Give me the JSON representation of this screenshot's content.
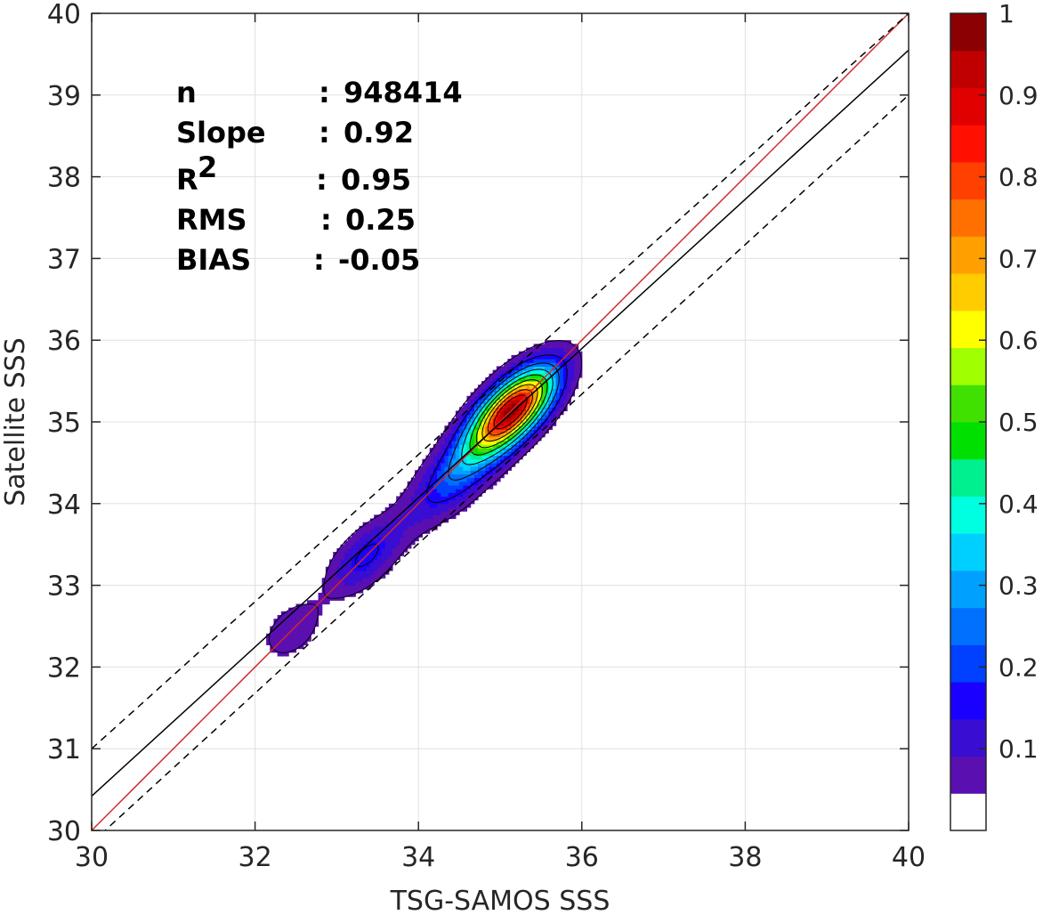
{
  "chart_data": {
    "type": "contour-density-scatter",
    "xlabel": "TSG-SAMOS SSS",
    "ylabel": "Satellite SSS",
    "xlim": [
      30,
      40
    ],
    "ylim": [
      30,
      40
    ],
    "xticks": [
      30,
      32,
      34,
      36,
      38,
      40
    ],
    "yticks": [
      30,
      31,
      32,
      33,
      34,
      35,
      36,
      37,
      38,
      39,
      40
    ],
    "grid": true,
    "stats": [
      {
        "label": "n",
        "sep": ":",
        "value": "948414"
      },
      {
        "label": "Slope",
        "sep": ":",
        "value": "0.92"
      },
      {
        "label": "R",
        "sup": "2",
        "sep": ":",
        "value": "0.95"
      },
      {
        "label": "RMS",
        "sep": ":",
        "value": "0.25"
      },
      {
        "label": "BIAS",
        "sep": ":",
        "value": "-0.05"
      }
    ],
    "lines": [
      {
        "kind": "one-to-one",
        "color": "#d62728",
        "style": "solid",
        "x": [
          30,
          40
        ],
        "y": [
          30,
          40
        ]
      },
      {
        "kind": "regression-fit",
        "color": "#000000",
        "style": "solid",
        "x": [
          30,
          40
        ],
        "y": [
          30.42,
          39.55
        ]
      },
      {
        "kind": "upper-bound",
        "color": "#000000",
        "style": "dashed",
        "x": [
          30,
          40
        ],
        "y": [
          31.0,
          40.0
        ]
      },
      {
        "kind": "lower-bound",
        "color": "#000000",
        "style": "dashed",
        "x": [
          30,
          40
        ],
        "y": [
          29.85,
          39.0
        ]
      }
    ],
    "density_clusters": [
      {
        "center": [
          32.45,
          32.45
        ],
        "sigma_along": 0.3,
        "sigma_across": 0.2,
        "peak": 0.09
      },
      {
        "center": [
          33.35,
          33.35
        ],
        "sigma_along": 0.4,
        "sigma_across": 0.2,
        "peak": 0.16
      },
      {
        "center": [
          34.5,
          34.4
        ],
        "sigma_along": 0.55,
        "sigma_across": 0.22,
        "peak": 0.22
      },
      {
        "center": [
          35.15,
          35.15
        ],
        "sigma_along": 0.45,
        "sigma_across": 0.2,
        "peak": 0.95
      }
    ],
    "colorbar": {
      "min": 0,
      "max": 1,
      "ticks": [
        0.1,
        0.2,
        0.3,
        0.4,
        0.5,
        0.6,
        0.7,
        0.8,
        0.9,
        1
      ],
      "tick_labels": [
        "0.1",
        "0.2",
        "0.3",
        "0.4",
        "0.5",
        "0.6",
        "0.7",
        "0.8",
        "0.9",
        "1"
      ],
      "colors": [
        "#ffffff",
        "#5a0fb0",
        "#3a0dd2",
        "#1a00ff",
        "#0040ff",
        "#0070ff",
        "#00a0ff",
        "#00d0ff",
        "#00ffe0",
        "#00f090",
        "#00e000",
        "#40e000",
        "#a0ff00",
        "#ffff00",
        "#ffcc00",
        "#ffa000",
        "#ff7000",
        "#ff4000",
        "#ff1000",
        "#e00000",
        "#c00000",
        "#8b0000"
      ]
    }
  }
}
